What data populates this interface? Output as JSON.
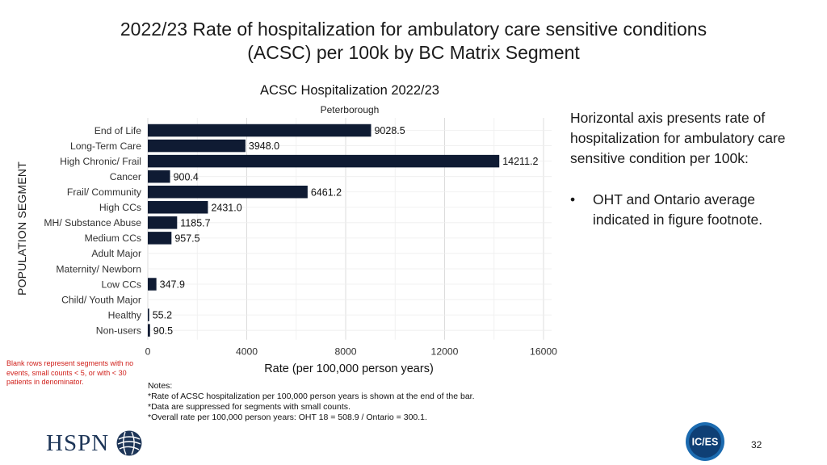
{
  "slide": {
    "title_line1": "2022/23 Rate of hospitalization for ambulatory care sensitive conditions",
    "title_line2": "(ACSC) per 100k by BC Matrix Segment",
    "side_label": "POPULATION SEGMENT",
    "explain_text": "Horizontal axis presents rate of hospitalization for ambulatory care sensitive condition per 100k:",
    "bullet_symbol": "•",
    "bullet_text": "OHT and Ontario average indicated in figure footnote.",
    "blank_note": "Blank rows represent segments with no events, small counts < 5, or with < 30 patients in denominator.",
    "notes": [
      "Notes:",
      "*Rate of ACSC hospitalization per 100,000 person years is shown at the end of the bar.",
      "*Data are suppressed for segments with small counts.",
      "*Overall rate per 100,000 person years: OHT 18 = 508.9 / Ontario = 300.1."
    ],
    "logo_left_text": "HSPN",
    "logo_right_text": "IC/ES",
    "page_number": "32",
    "colors": {
      "bar": "#0f1b33",
      "accent_red": "#d0201b",
      "ices_blue": "#1c6bb0"
    }
  },
  "chart_data": {
    "type": "bar",
    "orientation": "horizontal",
    "title": "ACSC Hospitalization 2022/23",
    "subtitle": "Peterborough",
    "xlabel": "Rate (per 100,000 person years)",
    "ylabel": "",
    "xlim": [
      0,
      16000
    ],
    "xticks": [
      0,
      4000,
      8000,
      12000,
      16000
    ],
    "xtick_labels": [
      "0",
      "4000",
      "8000",
      "12000",
      "16000"
    ],
    "grid": true,
    "categories": [
      "End of Life",
      "Long-Term Care",
      "High Chronic/ Frail",
      "Cancer",
      "Frail/ Community",
      "High CCs",
      "MH/ Substance Abuse",
      "Medium CCs",
      "Adult Major",
      "Maternity/ Newborn",
      "Low CCs",
      "Child/ Youth Major",
      "Healthy",
      "Non-users"
    ],
    "values": [
      9028.5,
      3948.0,
      14211.2,
      900.4,
      6461.2,
      2431.0,
      1185.7,
      957.5,
      null,
      null,
      347.9,
      null,
      55.2,
      90.5
    ],
    "value_labels": [
      "9028.5",
      "3948.0",
      "14211.2",
      "900.4",
      "6461.2",
      "2431.0",
      "1185.7",
      "957.5",
      "",
      "",
      "347.9",
      "",
      "55.2",
      "90.5"
    ]
  }
}
